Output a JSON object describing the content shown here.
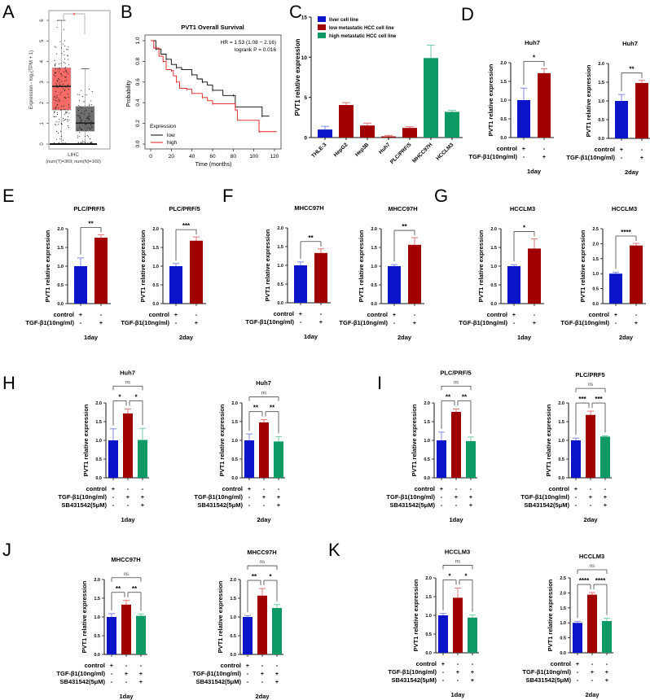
{
  "panel_labels": [
    "A",
    "B",
    "C",
    "D",
    "E",
    "F",
    "G",
    "H",
    "I",
    "J",
    "K"
  ],
  "colors": {
    "blue": "#0a14c8",
    "red": "#a00000",
    "green": "#0e9a64",
    "blue_err": "#8288e6",
    "red_err": "#e07474",
    "green_err": "#74cfa6",
    "box_tumor": "#f46a67",
    "box_normal": "#6e6e6e",
    "km_low": "#000000",
    "km_high": "#e8191a"
  },
  "chart_data": [
    {
      "panel": "A",
      "type": "box",
      "ylabel": "Expression - log₂(TPM + 1)",
      "ylim": [
        0,
        6.5
      ],
      "yticks": [
        "0",
        "1",
        "2",
        "3",
        "4",
        "5",
        "6"
      ],
      "xlabel": "LIHC",
      "subtitle": "(num(T)=369; num(N)=160)",
      "significance": "*",
      "groups": [
        {
          "name": "Tumor",
          "q1": 1.65,
          "median": 2.8,
          "q3": 3.7,
          "min": 0.05,
          "max": 6.0
        },
        {
          "name": "Normal",
          "q1": 0.62,
          "median": 1.02,
          "q3": 1.83,
          "min": 0.07,
          "max": 3.65
        }
      ]
    },
    {
      "panel": "B",
      "type": "line",
      "title": "PVT1 Overall Survival",
      "xlabel": "Time (months)",
      "ylabel": "Probability",
      "xlim": [
        0,
        120
      ],
      "ylim": [
        0,
        1
      ],
      "xticks": [
        "0",
        "20",
        "40",
        "60",
        "80",
        "100",
        "120"
      ],
      "yticks": [
        "0.0",
        "0.2",
        "0.4",
        "0.6",
        "0.8",
        "1.0"
      ],
      "annotation": [
        "HR = 1.53 (1.08 − 2.16)",
        "logrank P = 0.016"
      ],
      "legend_title": "Expression",
      "legend_position": "bottom-left",
      "series": [
        {
          "name": "low",
          "x": [
            0,
            5,
            10,
            15,
            20,
            25,
            30,
            40,
            45,
            50,
            55,
            60,
            70,
            80,
            82,
            108,
            115
          ],
          "y": [
            1,
            0.92,
            0.87,
            0.82,
            0.77,
            0.74,
            0.72,
            0.67,
            0.63,
            0.6,
            0.57,
            0.52,
            0.47,
            0.47,
            0.36,
            0.27,
            0.27
          ]
        },
        {
          "name": "high",
          "x": [
            0,
            3,
            8,
            12,
            15,
            20,
            22,
            25,
            28,
            35,
            40,
            50,
            55,
            60,
            80,
            82,
            84,
            105,
            122
          ],
          "y": [
            1,
            0.93,
            0.85,
            0.8,
            0.72,
            0.71,
            0.66,
            0.6,
            0.54,
            0.53,
            0.49,
            0.45,
            0.42,
            0.39,
            0.39,
            0.33,
            0.23,
            0.12,
            0.12
          ]
        }
      ]
    },
    {
      "panel": "C",
      "type": "bar",
      "ylabel": "PVT1 relative expression",
      "ylim": [
        0,
        15
      ],
      "yticks": [
        "0",
        "5",
        "10",
        "15"
      ],
      "categories": [
        "THLE-3",
        "HepG2",
        "Hep3B",
        "Huh7",
        "PLC/PRF/5",
        "MHCC97H",
        "HCCLM3"
      ],
      "values": [
        1.0,
        4.05,
        1.5,
        0.15,
        1.2,
        9.9,
        3.2
      ],
      "errors": [
        0.4,
        0.3,
        0.3,
        0.12,
        0.15,
        1.6,
        0.2
      ],
      "groups": [
        0,
        1,
        1,
        1,
        1,
        2,
        2
      ],
      "legend": [
        "liver cell line",
        "low metastatic HCC cell line",
        "high metastatic HCC cell line"
      ],
      "legend_position": "top-left"
    },
    {
      "panel": "D",
      "type": "bar",
      "title": "Huh7",
      "ylabel": "PVT1 relative expression",
      "ylim": [
        0,
        2
      ],
      "yticks": [
        "0.0",
        "0.5",
        "1.0",
        "1.5",
        "2.0"
      ],
      "rows": [
        {
          "label": "control",
          "marks": [
            "+",
            "-"
          ]
        },
        {
          "label": "TGF-β1(10ng/ml)",
          "marks": [
            "-",
            "+"
          ]
        }
      ],
      "values": [
        1.0,
        1.72
      ],
      "errors": [
        0.32,
        0.12
      ],
      "significance": [
        "*"
      ],
      "xlabel": "1day"
    },
    {
      "panel": "D",
      "type": "bar",
      "title": "Huh7",
      "ylabel": "PVT1 relative expression",
      "ylim": [
        0,
        2
      ],
      "yticks": [
        "0.0",
        "0.5",
        "1.0",
        "1.5",
        "2.0"
      ],
      "rows": [
        {
          "label": "control",
          "marks": [
            "+",
            "-"
          ]
        },
        {
          "label": "TGF-β1(10ng/ml)",
          "marks": [
            "-",
            "+"
          ]
        }
      ],
      "values": [
        1.0,
        1.48
      ],
      "errors": [
        0.17,
        0.07
      ],
      "significance": [
        "**"
      ],
      "xlabel": "2day"
    },
    {
      "panel": "E",
      "type": "bar",
      "title": "PLC/PRF/5",
      "ylabel": "PVT1 relative expression",
      "ylim": [
        0,
        2
      ],
      "yticks": [
        "0.0",
        "0.5",
        "1.0",
        "1.5",
        "2.0"
      ],
      "rows": [
        {
          "label": "control",
          "marks": [
            "+",
            "-"
          ]
        },
        {
          "label": "TGF-β1(10ng/ml)",
          "marks": [
            "-",
            "+"
          ]
        }
      ],
      "values": [
        1.0,
        1.76
      ],
      "errors": [
        0.22,
        0.08
      ],
      "significance": [
        "**"
      ],
      "xlabel": "1day"
    },
    {
      "panel": "E",
      "type": "bar",
      "title": "PLC/PRF/5",
      "ylabel": "PVT1 relative expression",
      "ylim": [
        0,
        2
      ],
      "yticks": [
        "0.0",
        "0.5",
        "1.0",
        "1.5",
        "2.0"
      ],
      "rows": [
        {
          "label": "control",
          "marks": [
            "+",
            "-"
          ]
        },
        {
          "label": "TGF-β1(10ng/ml)",
          "marks": [
            "-",
            "+"
          ]
        }
      ],
      "values": [
        1.0,
        1.68
      ],
      "errors": [
        0.07,
        0.1
      ],
      "significance": [
        "***"
      ],
      "xlabel": "2day"
    },
    {
      "panel": "F",
      "type": "bar",
      "title": "MHCC97H",
      "ylabel": "PVT1 relative expression",
      "ylim": [
        0,
        2
      ],
      "yticks": [
        "0.0",
        "0.5",
        "1.0",
        "1.5",
        "2.0"
      ],
      "rows": [
        {
          "label": "control",
          "marks": [
            "+",
            "-"
          ]
        },
        {
          "label": "TGF-β1(10ng/ml)",
          "marks": [
            "-",
            "+"
          ]
        }
      ],
      "values": [
        1.0,
        1.33
      ],
      "errors": [
        0.09,
        0.11
      ],
      "significance": [
        "**"
      ],
      "xlabel": "1day"
    },
    {
      "panel": "F",
      "type": "bar",
      "title": "MHCC97H",
      "ylabel": "PVT1 relative expression",
      "ylim": [
        0,
        2
      ],
      "yticks": [
        "0.0",
        "0.5",
        "1.0",
        "1.5",
        "2.0"
      ],
      "rows": [
        {
          "label": "control",
          "marks": [
            "+",
            "-"
          ]
        },
        {
          "label": "TGF-β1(10ng/ml)",
          "marks": [
            "-",
            "+"
          ]
        }
      ],
      "values": [
        1.0,
        1.57
      ],
      "errors": [
        0.04,
        0.19
      ],
      "significance": [
        "**"
      ],
      "xlabel": "2day"
    },
    {
      "panel": "G",
      "type": "bar",
      "title": "HCCLM3",
      "ylabel": "PVT1 relative expression",
      "ylim": [
        0,
        2
      ],
      "yticks": [
        "0.0",
        "0.5",
        "1.0",
        "1.5",
        "2.0"
      ],
      "rows": [
        {
          "label": "control",
          "marks": [
            "+",
            "-"
          ]
        },
        {
          "label": "TGF-β1(10ng/ml)",
          "marks": [
            "-",
            "+"
          ]
        }
      ],
      "values": [
        1.0,
        1.47
      ],
      "errors": [
        0.04,
        0.26
      ],
      "significance": [
        "*"
      ],
      "xlabel": "1day"
    },
    {
      "panel": "G",
      "type": "bar",
      "title": "HCCLM3",
      "ylabel": "PVT1 relative expression",
      "ylim": [
        0,
        2.5
      ],
      "yticks": [
        "0.0",
        "0.5",
        "1.0",
        "1.5",
        "2.0",
        "2.5"
      ],
      "rows": [
        {
          "label": "control",
          "marks": [
            "+",
            "-"
          ]
        },
        {
          "label": "TGF-β1(10ng/ml)",
          "marks": [
            "-",
            "+"
          ]
        }
      ],
      "values": [
        1.0,
        1.94
      ],
      "errors": [
        0.05,
        0.07
      ],
      "significance": [
        "****"
      ],
      "xlabel": "2day"
    },
    {
      "panel": "H",
      "type": "bar",
      "title": "Huh7",
      "ylabel": "PVT1 relative expression",
      "ylim": [
        0,
        2
      ],
      "yticks": [
        "0.0",
        "0.5",
        "1.0",
        "1.5",
        "2.0"
      ],
      "rows": [
        {
          "label": "control",
          "marks": [
            "+",
            "-",
            "-"
          ]
        },
        {
          "label": "TGF-β1(10ng/ml)",
          "marks": [
            "-",
            "+",
            "+"
          ]
        },
        {
          "label": "SB431542(5μM)",
          "marks": [
            "-",
            "-",
            "+"
          ]
        }
      ],
      "values": [
        1.0,
        1.72,
        1.01
      ],
      "errors": [
        0.31,
        0.12,
        0.31
      ],
      "significance": [
        "*",
        "*",
        "ns"
      ],
      "xlabel": "1day"
    },
    {
      "panel": "H",
      "type": "bar",
      "title": "Huh7",
      "ylabel": "PVT1 relative expression",
      "ylim": [
        0,
        2
      ],
      "yticks": [
        "0.0",
        "0.5",
        "1.0",
        "1.5",
        "2.0"
      ],
      "rows": [
        {
          "label": "control",
          "marks": [
            "+",
            "-",
            "-"
          ]
        },
        {
          "label": "TGF-β1(10ng/ml)",
          "marks": [
            "-",
            "+",
            "+"
          ]
        },
        {
          "label": "SB431542(5μM)",
          "marks": [
            "-",
            "-",
            "+"
          ]
        }
      ],
      "values": [
        1.0,
        1.48,
        0.97
      ],
      "errors": [
        0.17,
        0.07,
        0.13
      ],
      "significance": [
        "**",
        "**",
        "ns"
      ],
      "xlabel": "2day"
    },
    {
      "panel": "I",
      "type": "bar",
      "title": "PLC/PRF/5",
      "ylabel": "PVT1 relative expression",
      "ylim": [
        0,
        2
      ],
      "yticks": [
        "0.0",
        "0.5",
        "1.0",
        "1.5",
        "2.0"
      ],
      "rows": [
        {
          "label": "control",
          "marks": [
            "+",
            "-",
            "-"
          ]
        },
        {
          "label": "TGF-β1(10ng/ml)",
          "marks": [
            "-",
            "+",
            "+"
          ]
        },
        {
          "label": "SB431542(5μM)",
          "marks": [
            "-",
            "-",
            "+"
          ]
        }
      ],
      "values": [
        1.0,
        1.76,
        0.98
      ],
      "errors": [
        0.22,
        0.08,
        0.11
      ],
      "significance": [
        "**",
        "**",
        "ns"
      ],
      "xlabel": "1day"
    },
    {
      "panel": "I",
      "type": "bar",
      "title": "PLC/PRF5",
      "ylabel": "PVT1 relative expression",
      "ylim": [
        0,
        2
      ],
      "yticks": [
        "0.0",
        "0.5",
        "1.0",
        "1.5",
        "2.0"
      ],
      "rows": [
        {
          "label": "control",
          "marks": [
            "+",
            "-",
            "-"
          ]
        },
        {
          "label": "TGF-β1(10ng/ml)",
          "marks": [
            "-",
            "+",
            "+"
          ]
        },
        {
          "label": "SB431542(5μM)",
          "marks": [
            "-",
            "-",
            "+"
          ]
        }
      ],
      "values": [
        1.0,
        1.68,
        1.1
      ],
      "errors": [
        0.06,
        0.1,
        0.02
      ],
      "significance": [
        "***",
        "***",
        "ns"
      ],
      "xlabel": "2day"
    },
    {
      "panel": "J",
      "type": "bar",
      "title": "MHCC97H",
      "ylabel": "PVT1 relative expression",
      "ylim": [
        0,
        2
      ],
      "yticks": [
        "0.0",
        "0.5",
        "1.0",
        "1.5",
        "2.0"
      ],
      "rows": [
        {
          "label": "control",
          "marks": [
            "+",
            "-",
            "-"
          ]
        },
        {
          "label": "TGF-β1(10ng/ml)",
          "marks": [
            "-",
            "+",
            "+"
          ]
        },
        {
          "label": "SB431542(5μM)",
          "marks": [
            "-",
            "-",
            "+"
          ]
        }
      ],
      "values": [
        1.0,
        1.33,
        1.03
      ],
      "errors": [
        0.09,
        0.11,
        0.05
      ],
      "significance": [
        "**",
        "**",
        "ns"
      ],
      "xlabel": "1day"
    },
    {
      "panel": "J",
      "type": "bar",
      "title": "MHCC97H",
      "ylabel": "PVT1 relative expression",
      "ylim": [
        0,
        2
      ],
      "yticks": [
        "0.0",
        "0.5",
        "1.0",
        "1.5",
        "2.0"
      ],
      "rows": [
        {
          "label": "control",
          "marks": [
            "+",
            "-",
            "-"
          ]
        },
        {
          "label": "TGF-β1(10ng/ml)",
          "marks": [
            "-",
            "+",
            "+"
          ]
        },
        {
          "label": "SB431542(5μM)",
          "marks": [
            "-",
            "-",
            "+"
          ]
        }
      ],
      "values": [
        1.0,
        1.57,
        1.24
      ],
      "errors": [
        0.04,
        0.19,
        0.09
      ],
      "significance": [
        "**",
        "*",
        "ns"
      ],
      "xlabel": "2day"
    },
    {
      "panel": "K",
      "type": "bar",
      "title": "HCCLM3",
      "ylabel": "PVT1 relative expression",
      "ylim": [
        0,
        2
      ],
      "yticks": [
        "0.0",
        "0.5",
        "1.0",
        "1.5",
        "2.0"
      ],
      "rows": [
        {
          "label": "control",
          "marks": [
            "+",
            "-",
            "-"
          ]
        },
        {
          "label": "TGF-β1(10ng/ml)",
          "marks": [
            "-",
            "+",
            "+"
          ]
        },
        {
          "label": "SB431542(5μM)",
          "marks": [
            "-",
            "-",
            "+"
          ]
        }
      ],
      "values": [
        1.0,
        1.47,
        0.94
      ],
      "errors": [
        0.05,
        0.26,
        0.07
      ],
      "significance": [
        "*",
        "*",
        "ns"
      ],
      "xlabel": "1day"
    },
    {
      "panel": "K",
      "type": "bar",
      "title": "HCCLM3",
      "ylabel": "PVT1 relative expression",
      "ylim": [
        0,
        2.5
      ],
      "yticks": [
        "0.0",
        "0.5",
        "1.0",
        "1.5",
        "2.0",
        "2.5"
      ],
      "rows": [
        {
          "label": "control",
          "marks": [
            "+",
            "-",
            "-"
          ]
        },
        {
          "label": "TGF-β1(10ng/ml)",
          "marks": [
            "-",
            "+",
            "+"
          ]
        },
        {
          "label": "SB431542(5μM)",
          "marks": [
            "-",
            "-",
            "+"
          ]
        }
      ],
      "values": [
        1.0,
        1.94,
        1.06
      ],
      "errors": [
        0.05,
        0.07,
        0.09
      ],
      "significance": [
        "****",
        "****",
        "ns"
      ],
      "xlabel": "2day"
    }
  ]
}
